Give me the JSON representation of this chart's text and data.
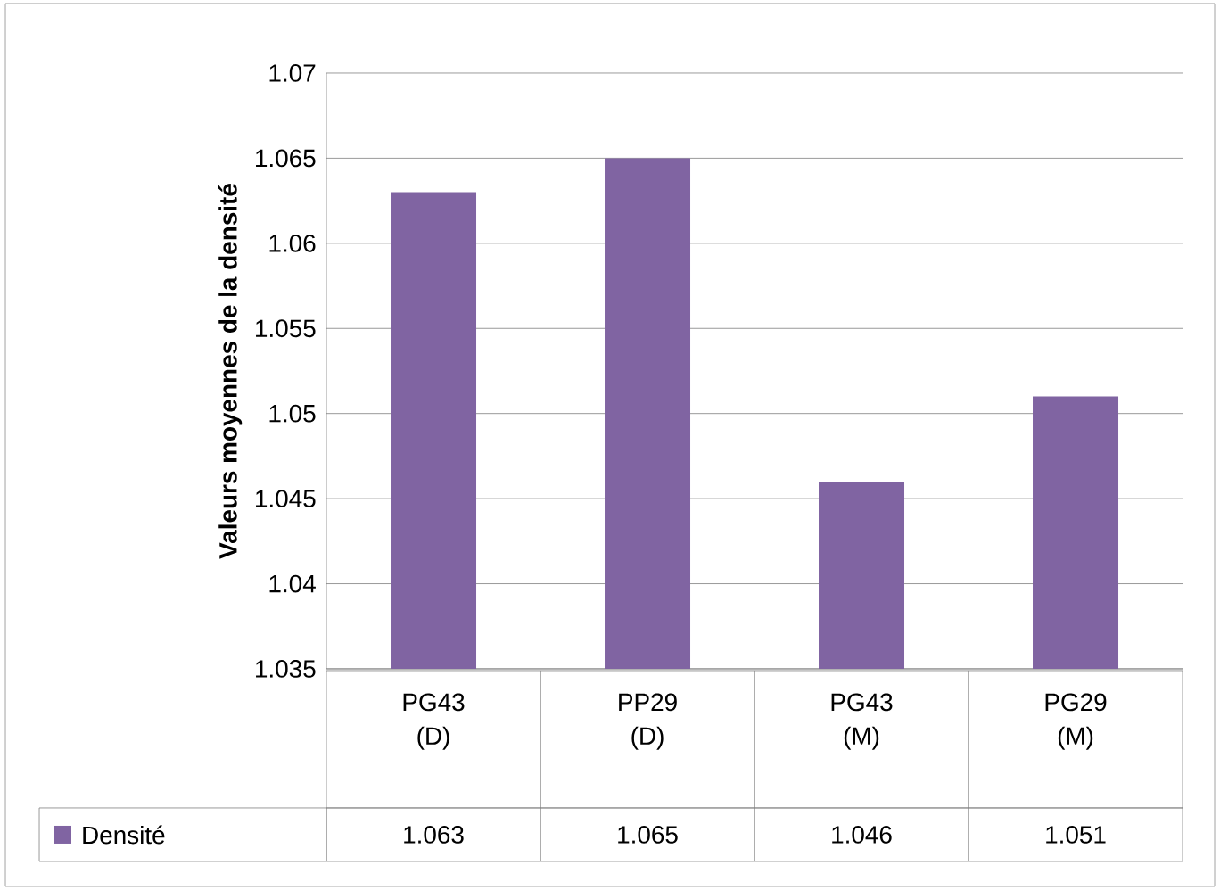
{
  "chart_data": {
    "type": "bar",
    "ylabel": "Valeurs moyennes de la densité",
    "categories": [
      "PG43 (D)",
      "PP29 (D)",
      "PG43 (M)",
      "PG29 (M)"
    ],
    "series": [
      {
        "name": "Densité",
        "color": "#8064a2",
        "values": [
          1.063,
          1.065,
          1.046,
          1.051
        ]
      }
    ],
    "ylim": [
      1.035,
      1.07
    ],
    "yticks": [
      1.035,
      1.04,
      1.045,
      1.05,
      1.055,
      1.06,
      1.065,
      1.07
    ],
    "grid": "y",
    "legend": "bottom",
    "data_labels": true
  }
}
